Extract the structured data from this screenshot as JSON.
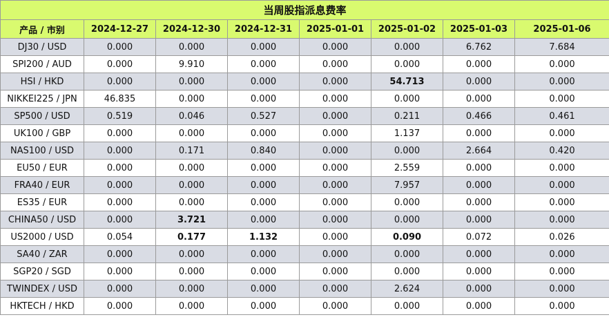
{
  "title": "当周股指派息费率",
  "header": [
    "产品 / 市别",
    "2024-12-27",
    "2024-12-30",
    "2024-12-31",
    "2025-01-01",
    "2025-01-02",
    "2025-01-03",
    "2025-01-06"
  ],
  "rows": [
    {
      "product": "DJ30 / USD",
      "values": [
        "0.000",
        "0.000",
        "0.000",
        "0.000",
        "0.000",
        "6.762",
        "7.684"
      ],
      "bold": []
    },
    {
      "product": "SPI200 / AUD",
      "values": [
        "0.000",
        "9.910",
        "0.000",
        "0.000",
        "0.000",
        "0.000",
        "0.000"
      ],
      "bold": []
    },
    {
      "product": "HSI / HKD",
      "values": [
        "0.000",
        "0.000",
        "0.000",
        "0.000",
        "54.713",
        "0.000",
        "0.000"
      ],
      "bold": [
        4
      ]
    },
    {
      "product": "NIKKEI225 / JPN",
      "values": [
        "46.835",
        "0.000",
        "0.000",
        "0.000",
        "0.000",
        "0.000",
        "0.000"
      ],
      "bold": []
    },
    {
      "product": "SP500 / USD",
      "values": [
        "0.519",
        "0.046",
        "0.527",
        "0.000",
        "0.211",
        "0.466",
        "0.461"
      ],
      "bold": []
    },
    {
      "product": "UK100 / GBP",
      "values": [
        "0.000",
        "0.000",
        "0.000",
        "0.000",
        "1.137",
        "0.000",
        "0.000"
      ],
      "bold": []
    },
    {
      "product": "NAS100 / USD",
      "values": [
        "0.000",
        "0.171",
        "0.840",
        "0.000",
        "0.000",
        "2.664",
        "0.420"
      ],
      "bold": []
    },
    {
      "product": "EU50 / EUR",
      "values": [
        "0.000",
        "0.000",
        "0.000",
        "0.000",
        "2.559",
        "0.000",
        "0.000"
      ],
      "bold": []
    },
    {
      "product": "FRA40 / EUR",
      "values": [
        "0.000",
        "0.000",
        "0.000",
        "0.000",
        "7.957",
        "0.000",
        "0.000"
      ],
      "bold": []
    },
    {
      "product": "ES35 / EUR",
      "values": [
        "0.000",
        "0.000",
        "0.000",
        "0.000",
        "0.000",
        "0.000",
        "0.000"
      ],
      "bold": []
    },
    {
      "product": "CHINA50 / USD",
      "values": [
        "0.000",
        "3.721",
        "0.000",
        "0.000",
        "0.000",
        "0.000",
        "0.000"
      ],
      "bold": [
        1
      ]
    },
    {
      "product": "US2000 / USD",
      "values": [
        "0.054",
        "0.177",
        "1.132",
        "0.000",
        "0.090",
        "0.072",
        "0.026"
      ],
      "bold": [
        1,
        2,
        4
      ]
    },
    {
      "product": "SA40 / ZAR",
      "values": [
        "0.000",
        "0.000",
        "0.000",
        "0.000",
        "0.000",
        "0.000",
        "0.000"
      ],
      "bold": []
    },
    {
      "product": "SGP20 / SGD",
      "values": [
        "0.000",
        "0.000",
        "0.000",
        "0.000",
        "0.000",
        "0.000",
        "0.000"
      ],
      "bold": []
    },
    {
      "product": "TWINDEX / USD",
      "values": [
        "0.000",
        "0.000",
        "0.000",
        "0.000",
        "2.624",
        "0.000",
        "0.000"
      ],
      "bold": []
    },
    {
      "product": "HKTECH / HKD",
      "values": [
        "0.000",
        "0.000",
        "0.000",
        "0.000",
        "0.000",
        "0.000",
        "0.000"
      ],
      "bold": []
    }
  ]
}
